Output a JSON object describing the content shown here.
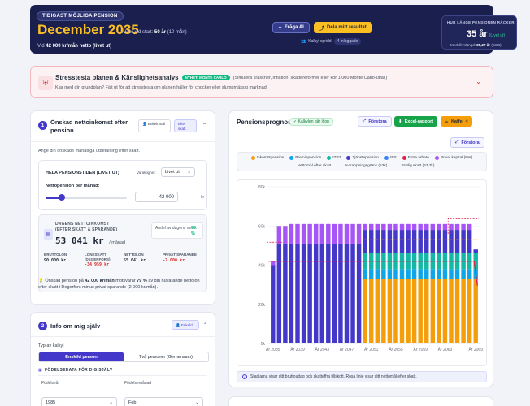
{
  "header": {
    "pill": "TIDIGAST MÖJLIGA PENSION",
    "date": "December 2035",
    "age_label": "Ålder vid start:",
    "age_value": "50 år",
    "age_months": "(10 mån)",
    "net_prefix": "Vid",
    "net_value": "42 000 kr/mån netto",
    "net_suffix": "(livet ut)",
    "ask_ai": "Fråga AI",
    "share": "Dela mitt resultat",
    "calc_shared": "Kalkyl spridd",
    "calc_shared_count": "4 inloggade",
    "last_label": "HUR LÄNGE PENSIONEN RÄCKER",
    "years": "35",
    "years_unit": "år",
    "years_note": "(Livet ut)",
    "life_label": "Medellivslängd:",
    "life_value": "85,27 år",
    "life_source": "(SCB)"
  },
  "stress": {
    "title": "Stresstesta planen & Känslighetsanalys",
    "badge": "NYHET: MONTE CARLO",
    "paren": "(Simulera krascher, inflation, skattereformer eller kör 1 000 Monte Carlo-utfall)",
    "desc": "Klar med din grundplan? Fält ut för att stresstesta om planen håller för chocker eller slumpmässig marknad."
  },
  "card1": {
    "step": "1",
    "title": "Önskad nettoinkomst efter pension",
    "chip1": "Enkelt mål",
    "chip2": "Efter skatt",
    "hint": "Ange din önskade månatliga utbetalning efter skatt.",
    "box_title": "HELA PENSIONSTIDEN (LIVET UT)",
    "var_label": "Varaktighet:",
    "var_value": "Livet ut",
    "np_label": "Nettopension per månad:",
    "np_value": "42 000",
    "np_unit": "kr",
    "slider_fraction": 0.2,
    "daily_label": "DAGENS NETTOINKOMST (EFTER SKATT & SPARANDE)",
    "daily_value": "53 041 kr",
    "daily_unit": "/ månad",
    "share_label": "Andel av dagens netto:",
    "share_value": "79 %",
    "stats": [
      {
        "label": "BRUTTOLÖN",
        "value": "90 000 kr",
        "red": false
      },
      {
        "label": "LÖNESKATT (DEGERFORS)",
        "value": "-34 959 kr",
        "red": true
      },
      {
        "label": "NETTOLÖN",
        "value": "55 041 kr",
        "red": false
      },
      {
        "label": "PRIVAT SPARANDE",
        "value": "-2 000 kr",
        "red": true
      }
    ],
    "foot_a": "Önskad pension på",
    "foot_b": "42 000 kr/mån",
    "foot_c": "motsvarar",
    "foot_d": "79 %",
    "foot_e": "av din nuvarande nettolön efter skatt i Degerfors minus privat sparande (2 000 kr/mån)."
  },
  "card2": {
    "step": "2",
    "title": "Info om mig själv",
    "chip": "Enkeld",
    "type_label": "Typ av kalkyl",
    "seg1": "Enskild person",
    "seg2": "Två personer (Gemensam)",
    "birth_label": "FÖDELSEDATA FÖR DIG SJÄLV",
    "year_label": "Födelseår",
    "year_value": "1985",
    "month_label": "Födelsemånad",
    "month_value": "Feb"
  },
  "card3": {
    "title": "Pensionsprognos",
    "shop": "Kalkylen går ihop",
    "btn_expand": "Förstora",
    "btn_excel": "Excel-rapport",
    "btn_coffee": "Kaffe",
    "btn_expand2": "Förstora",
    "legend_row1": [
      {
        "label": "Inkomstpension",
        "color": "#f59e0b"
      },
      {
        "label": "Premiepension",
        "color": "#0ea5e9"
      },
      {
        "label": "ITP2",
        "color": "#14b8a6"
      },
      {
        "label": "Tjänstepension",
        "color": "#4338ca"
      },
      {
        "label": "IPS",
        "color": "#3b82f6"
      },
      {
        "label": "Extra arbete",
        "color": "#e11d48"
      },
      {
        "label": "Privat kapital (Net)",
        "color": "#a855f7"
      }
    ],
    "legend_row2": [
      {
        "label": "Nettomål efter skatt",
        "color": "#e11d48",
        "dash": false
      },
      {
        "label": "Avtrappningsgräns (53k)",
        "color": "#f59e0b",
        "dash": true
      },
      {
        "label": "Statlig skatt (63,7k)",
        "color": "#e11d48",
        "dash": true
      }
    ],
    "note": "Staplarna visar ditt bruttouttag och skatteffra tillskott. Rosa linje visar ditt nettomål efter skatt."
  },
  "chart_data": {
    "type": "bar",
    "stacked": true,
    "x_start": 2035,
    "x_tick_labels": [
      "År 2035",
      "År 2039",
      "År 2043",
      "År 2047",
      "År 2051",
      "År 2055",
      "År 2059",
      "År 2063",
      "År 2069"
    ],
    "y_ticks": [
      "0k",
      "20k",
      "40k",
      "60k",
      "80k"
    ],
    "ylim": [
      0,
      80000
    ],
    "series_colors": [
      "#f59e0b",
      "#0ea5e9",
      "#14b8a6",
      "#4338ca",
      "#a855f7"
    ],
    "phases": [
      {
        "years": 1,
        "values": [
          0,
          0,
          0,
          40000,
          2000
        ]
      },
      {
        "years": 2,
        "values": [
          0,
          0,
          0,
          51000,
          9000
        ]
      },
      {
        "years": 12,
        "values": [
          0,
          0,
          0,
          51000,
          10000
        ]
      },
      {
        "years": 14,
        "values": [
          33000,
          5000,
          8000,
          12000,
          3000
        ]
      },
      {
        "years": 4,
        "values": [
          33000,
          5000,
          8000,
          12000,
          3000
        ]
      },
      {
        "years": 1,
        "values": [
          33000,
          5000,
          8000,
          2000,
          0
        ]
      }
    ],
    "net_target": 42000,
    "taper_limit": 53000,
    "state_tax": 63700
  }
}
